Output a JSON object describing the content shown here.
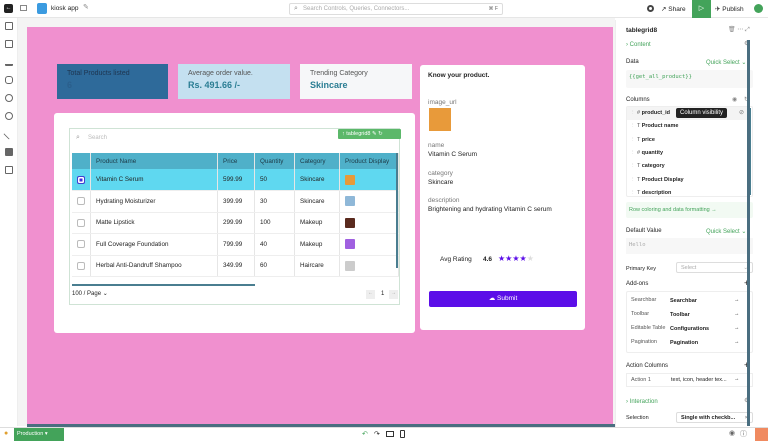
{
  "topbar": {
    "app_name": "kiosk app",
    "search_placeholder": "Search Controls, Queries, Connectors...",
    "shortcut": "⌘ F",
    "share": "Share",
    "publish": "Publish"
  },
  "cards": [
    {
      "label": "Total Products listed",
      "value": "6"
    },
    {
      "label": "Average order value.",
      "value": "Rs. 491.66 /-"
    },
    {
      "label": "Trending Category",
      "value": "Skincare"
    }
  ],
  "table": {
    "search_placeholder": "Search",
    "widget_tag": "tablegrid8",
    "columns": [
      "Product Name",
      "Price",
      "Quantity",
      "Category",
      "Product Display"
    ],
    "rows": [
      {
        "name": "Vitamin C Serum",
        "price": "599.99",
        "quantity": "50",
        "category": "Skincare",
        "selected": true,
        "thumb": "#e89a3a"
      },
      {
        "name": "Hydrating Moisturizer",
        "price": "399.99",
        "quantity": "30",
        "category": "Skincare",
        "selected": false,
        "thumb": "#8fb8d8"
      },
      {
        "name": "Matte Lipstick",
        "price": "299.99",
        "quantity": "100",
        "category": "Makeup",
        "selected": false,
        "thumb": "#5a2a1e"
      },
      {
        "name": "Full Coverage Foundation",
        "price": "799.99",
        "quantity": "40",
        "category": "Makeup",
        "selected": false,
        "thumb": "#a060e0"
      },
      {
        "name": "Herbal Anti-Dandruff Shampoo",
        "price": "349.99",
        "quantity": "60",
        "category": "Haircare",
        "selected": false,
        "thumb": "#cccccc"
      }
    ],
    "page_size": "100 / Page",
    "page": "1"
  },
  "form": {
    "title": "Know your product.",
    "image_label": "image_url",
    "name_label": "name",
    "name_value": "Vitamin C Serum",
    "category_label": "category",
    "category_value": "Skincare",
    "description_label": "description",
    "description_value": "Brightening and hydrating Vitamin C serum",
    "rating_label": "Avg Rating",
    "rating_value": "4.6",
    "rating_stars": 4,
    "rating_max": 5,
    "submit": "Submit"
  },
  "panel": {
    "widget": "tablegrid8",
    "content": "Content",
    "data_label": "Data",
    "quick_select": "Quick Select",
    "data_value": "{{get_all_product}}",
    "columns_label": "Columns",
    "tooltip": "Column visibility",
    "columns": [
      {
        "type": "#",
        "name": "product_id"
      },
      {
        "type": "T",
        "name": "Product name"
      },
      {
        "type": "T",
        "name": "price"
      },
      {
        "type": "#",
        "name": "quantity"
      },
      {
        "type": "T",
        "name": "category"
      },
      {
        "type": "T",
        "name": "Product Display"
      },
      {
        "type": "T",
        "name": "description"
      }
    ],
    "row_coloring": "Row coloring and data formatting →",
    "default_value_label": "Default Value",
    "default_placeholder": "Hello",
    "primary_key_label": "Primary Key",
    "primary_key_placeholder": "Select",
    "addons_label": "Add-ons",
    "addons": [
      {
        "k": "Searchbar",
        "v": "Searchbar"
      },
      {
        "k": "Toolbar",
        "v": "Toolbar"
      },
      {
        "k": "Editable Table",
        "v": "Configurations"
      },
      {
        "k": "Pagination",
        "v": "Pagination"
      }
    ],
    "action_columns_label": "Action Columns",
    "action": {
      "k": "Action 1",
      "v": "text, icon, header tex..."
    },
    "interaction": "Interaction",
    "selection_label": "Selection",
    "selection_value": "Single with checkb..."
  },
  "bottombar": {
    "env": "Production ▾"
  },
  "colors": {
    "canvas": "#f090cf",
    "accent": "#5b0ee8",
    "green": "#43a35a",
    "header": "#4fb0c9"
  }
}
